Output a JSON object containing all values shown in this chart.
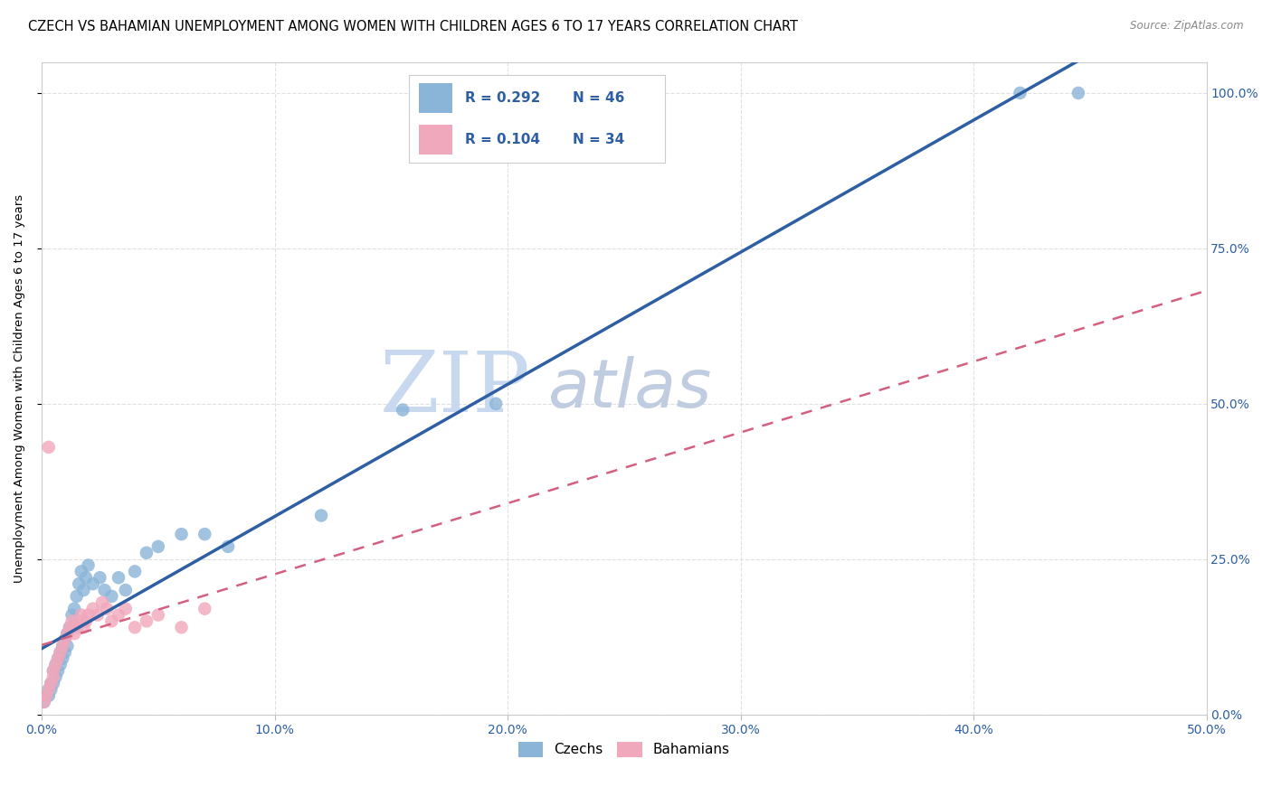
{
  "title": "CZECH VS BAHAMIAN UNEMPLOYMENT AMONG WOMEN WITH CHILDREN AGES 6 TO 17 YEARS CORRELATION CHART",
  "source": "Source: ZipAtlas.com",
  "ylabel": "Unemployment Among Women with Children Ages 6 to 17 years",
  "xlim": [
    0.0,
    0.5
  ],
  "ylim": [
    0.0,
    1.05
  ],
  "xticks": [
    0.0,
    0.1,
    0.2,
    0.3,
    0.4,
    0.5
  ],
  "yticks": [
    0.0,
    0.25,
    0.5,
    0.75,
    1.0
  ],
  "xtick_labels": [
    "0.0%",
    "10.0%",
    "20.0%",
    "30.0%",
    "40.0%",
    "50.0%"
  ],
  "ytick_labels": [
    "0.0%",
    "25.0%",
    "50.0%",
    "75.0%",
    "100.0%"
  ],
  "blue_color": "#8ab4d8",
  "pink_color": "#f0a8bc",
  "blue_line_color": "#2e5fa3",
  "pink_line_color": "#d46080",
  "legend_R1": "0.292",
  "legend_N1": "46",
  "legend_R2": "0.104",
  "legend_N2": "34",
  "legend_color": "#2e5fa3",
  "title_fontsize": 10.5,
  "axis_label_fontsize": 9.5,
  "tick_fontsize": 10,
  "watermark_zip": "ZIP",
  "watermark_atlas": "atlas",
  "watermark_color_zip": "#c8d8ee",
  "watermark_color_atlas": "#c0cce0",
  "czech_x": [
    0.001,
    0.002,
    0.003,
    0.003,
    0.004,
    0.004,
    0.005,
    0.005,
    0.006,
    0.006,
    0.007,
    0.007,
    0.008,
    0.008,
    0.009,
    0.009,
    0.01,
    0.01,
    0.011,
    0.011,
    0.012,
    0.013,
    0.014,
    0.015,
    0.016,
    0.017,
    0.018,
    0.019,
    0.02,
    0.022,
    0.025,
    0.027,
    0.03,
    0.033,
    0.036,
    0.04,
    0.045,
    0.05,
    0.06,
    0.07,
    0.08,
    0.12,
    0.155,
    0.195,
    0.42,
    0.445
  ],
  "czech_y": [
    0.02,
    0.03,
    0.03,
    0.04,
    0.04,
    0.05,
    0.05,
    0.07,
    0.06,
    0.08,
    0.07,
    0.09,
    0.08,
    0.1,
    0.09,
    0.11,
    0.1,
    0.12,
    0.11,
    0.13,
    0.14,
    0.16,
    0.17,
    0.19,
    0.21,
    0.23,
    0.2,
    0.22,
    0.24,
    0.21,
    0.22,
    0.2,
    0.19,
    0.22,
    0.2,
    0.23,
    0.26,
    0.27,
    0.29,
    0.29,
    0.27,
    0.32,
    0.49,
    0.5,
    1.0,
    1.0
  ],
  "bah_x": [
    0.001,
    0.002,
    0.003,
    0.004,
    0.005,
    0.005,
    0.006,
    0.007,
    0.008,
    0.009,
    0.01,
    0.011,
    0.012,
    0.013,
    0.014,
    0.015,
    0.016,
    0.017,
    0.018,
    0.019,
    0.02,
    0.022,
    0.024,
    0.026,
    0.028,
    0.03,
    0.033,
    0.036,
    0.04,
    0.045,
    0.05,
    0.06,
    0.07,
    0.003
  ],
  "bah_y": [
    0.02,
    0.03,
    0.04,
    0.05,
    0.06,
    0.07,
    0.08,
    0.09,
    0.1,
    0.11,
    0.12,
    0.13,
    0.14,
    0.15,
    0.13,
    0.14,
    0.15,
    0.16,
    0.14,
    0.15,
    0.16,
    0.17,
    0.16,
    0.18,
    0.17,
    0.15,
    0.16,
    0.17,
    0.14,
    0.15,
    0.16,
    0.14,
    0.17,
    0.43
  ]
}
